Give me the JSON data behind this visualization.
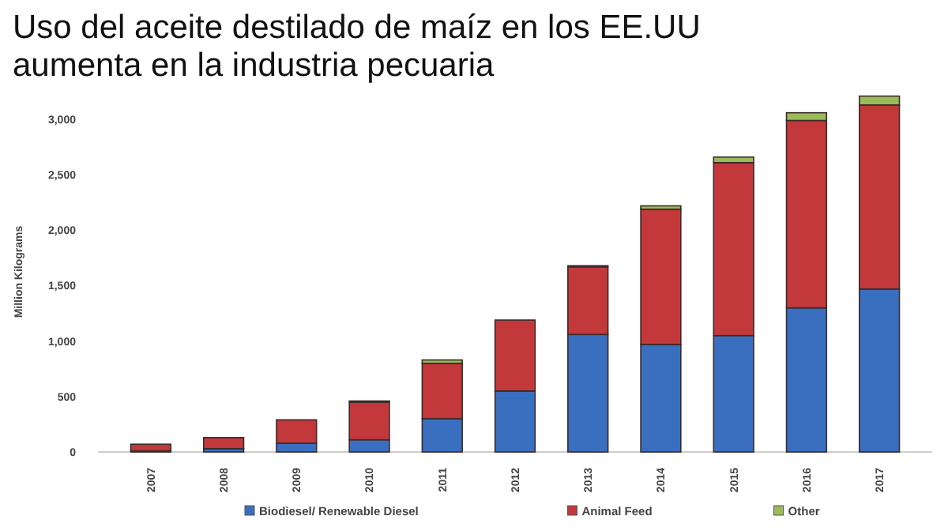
{
  "chart_data": {
    "type": "bar",
    "stacked": true,
    "title": "Uso del aceite destilado de maíz en los EE.UU aumenta en la industria pecuaria",
    "ylabel": "Million Kilograms",
    "categories": [
      "2007",
      "2008",
      "2009",
      "2010",
      "2011",
      "2012",
      "2013",
      "2014",
      "2015",
      "2016",
      "2017"
    ],
    "series": [
      {
        "name": "Biodiesel/ Renewable Diesel",
        "color": "#3a6fbf",
        "values": [
          10,
          30,
          80,
          110,
          300,
          550,
          1060,
          970,
          1050,
          1300,
          1470
        ]
      },
      {
        "name": "Animal Feed",
        "color": "#c3393b",
        "values": [
          60,
          100,
          210,
          340,
          500,
          640,
          610,
          1220,
          1560,
          1690,
          1660
        ]
      },
      {
        "name": "Other",
        "color": "#9bbb59",
        "values": [
          0,
          0,
          null,
          10,
          30,
          null,
          10,
          30,
          50,
          70,
          80
        ]
      }
    ],
    "ylim": [
      0,
      3250
    ],
    "yticks": [
      0,
      {
        "value": 500,
        "label": "500"
      },
      {
        "value": 1000,
        "label": "1,000"
      },
      {
        "value": 1500,
        "label": "1,500"
      },
      {
        "value": 2000,
        "label": "2,000"
      },
      {
        "value": 2500,
        "label": "2,500"
      },
      {
        "value": 3000,
        "label": "3,000"
      }
    ],
    "grid": false,
    "legend": "bottom"
  }
}
